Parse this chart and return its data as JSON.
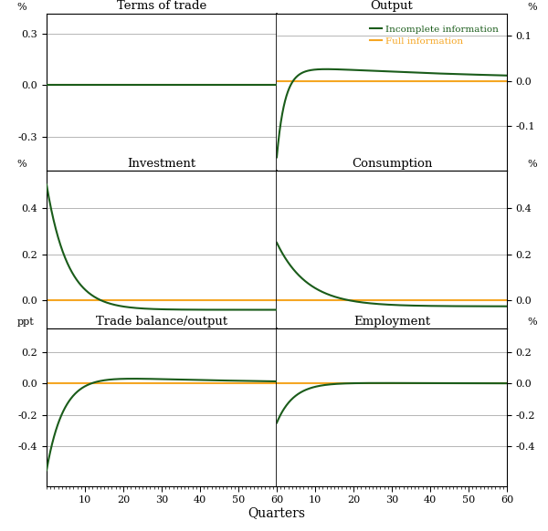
{
  "panels": [
    {
      "title": "Terms of trade",
      "ylabel": "%",
      "ylim": [
        -0.5,
        0.42
      ],
      "yticks": [
        0.3,
        0.0,
        -0.3
      ],
      "side": "left"
    },
    {
      "title": "Output",
      "ylabel": "%",
      "ylim": [
        -0.2,
        0.15
      ],
      "yticks": [
        0.1,
        0.0,
        -0.1
      ],
      "side": "right"
    },
    {
      "title": "Investment",
      "ylabel": "%",
      "ylim": [
        -0.12,
        0.56
      ],
      "yticks": [
        0.4,
        0.2,
        0.0
      ],
      "side": "left"
    },
    {
      "title": "Consumption",
      "ylabel": "%",
      "ylim": [
        -0.12,
        0.56
      ],
      "yticks": [
        0.4,
        0.2,
        0.0
      ],
      "side": "right"
    },
    {
      "title": "Trade balance/output",
      "ylabel": "ppt",
      "ylim": [
        -0.65,
        0.35
      ],
      "yticks": [
        0.2,
        0.0,
        -0.2,
        -0.4
      ],
      "side": "left"
    },
    {
      "title": "Employment",
      "ylabel": "%",
      "ylim": [
        -0.65,
        0.35
      ],
      "yticks": [
        0.2,
        0.0,
        -0.2,
        -0.4
      ],
      "side": "right"
    }
  ],
  "color_incomplete": "#1a5c1a",
  "color_full": "#f5a623",
  "legend_labels": [
    "Incomplete information",
    "Full information"
  ],
  "xlabel": "Quarters",
  "background_color": "#ffffff",
  "grid_color": "#aaaaaa"
}
